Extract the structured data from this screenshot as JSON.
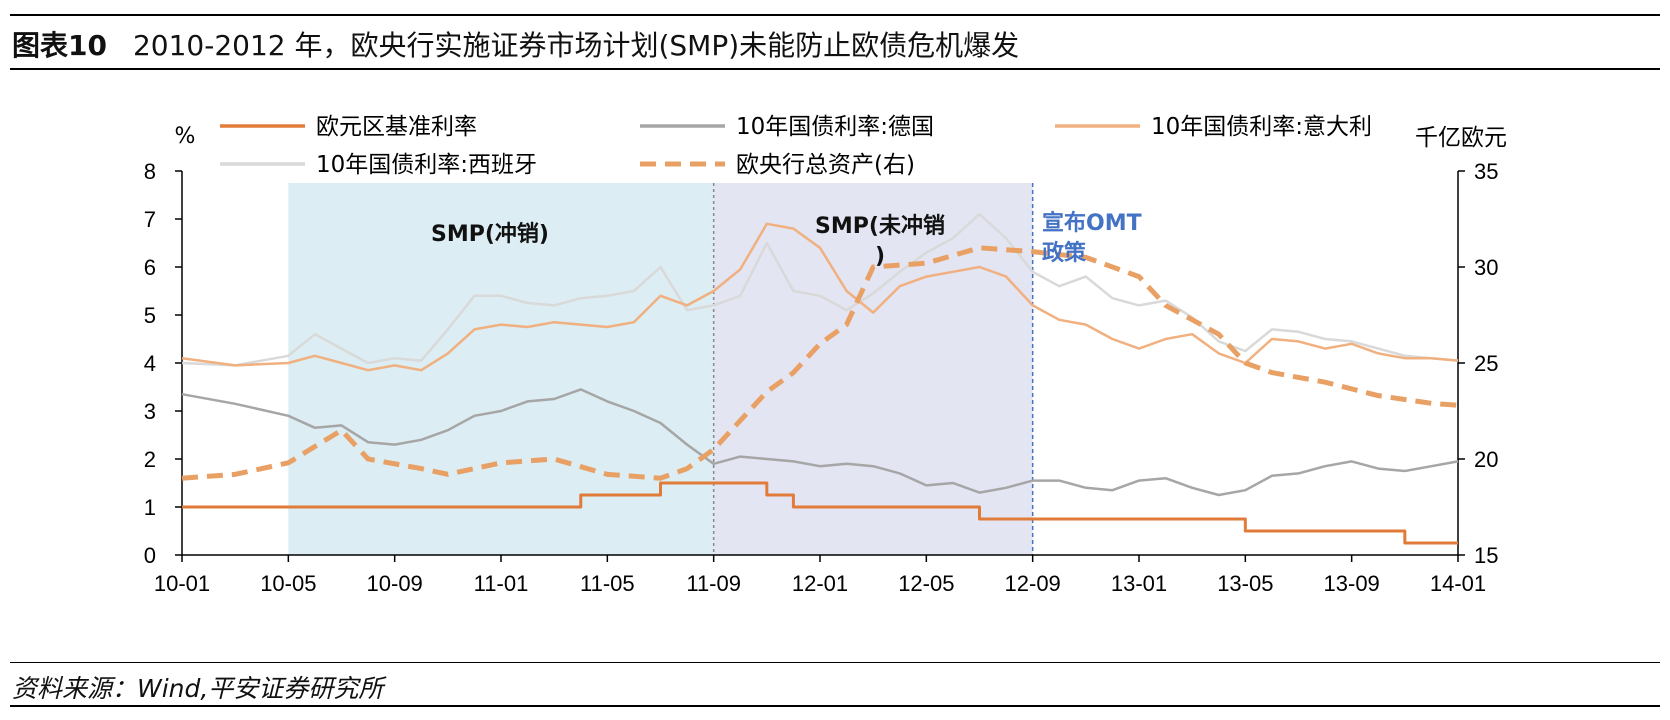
{
  "header": {
    "figure_number": "图表10",
    "title": "2010-2012 年，欧央行实施证券市场计划(SMP)未能防止欧债危机爆发"
  },
  "footer": {
    "source": "资料来源：Wind,平安证券研究所"
  },
  "chart_data": {
    "type": "line",
    "x_tick_labels": [
      "10-01",
      "10-05",
      "10-09",
      "11-01",
      "11-05",
      "11-09",
      "12-01",
      "12-05",
      "12-09",
      "13-01",
      "13-05",
      "13-09",
      "14-01"
    ],
    "y_left": {
      "unit": "%",
      "ylim": [
        0,
        8
      ],
      "ticks": [
        0,
        1,
        2,
        3,
        4,
        5,
        6,
        7,
        8
      ]
    },
    "y_right": {
      "unit": "千亿欧元",
      "ylim": [
        15,
        35
      ],
      "ticks": [
        15,
        20,
        25,
        30,
        35
      ]
    },
    "legend": [
      "欧元区基准利率",
      "10年国债利率:德国",
      "10年国债利率:意大利",
      "10年国债利率:西班牙",
      "欧央行总资产(右)"
    ],
    "colors": {
      "ecb_rate": "#e07b39",
      "germany": "#a6a6a6",
      "italy": "#f0b080",
      "spain": "#d9d9d9",
      "ecb_assets": "#e8a065",
      "smp_sterilized_region": "#dcedf3",
      "smp_unsterilized_region": "#e3e5f2",
      "omt_label": "#4472c4"
    },
    "regions": [
      {
        "label": "SMP(冲销)",
        "from": "2010-05",
        "to": "2011-09"
      },
      {
        "label": "SMP(未冲销)",
        "from": "2011-09",
        "to": "2012-09"
      }
    ],
    "annotations": [
      {
        "label": "宣布OMT政策",
        "at": "2012-09"
      }
    ],
    "series": [
      {
        "name": "欧元区基准利率",
        "axis": "left",
        "style": "step",
        "points": [
          [
            "2010-01",
            1.0
          ],
          [
            "2011-04",
            1.25
          ],
          [
            "2011-07",
            1.5
          ],
          [
            "2011-11",
            1.25
          ],
          [
            "2011-12",
            1.0
          ],
          [
            "2012-07",
            0.75
          ],
          [
            "2013-05",
            0.5
          ],
          [
            "2013-11",
            0.25
          ],
          [
            "2014-01",
            0.25
          ]
        ]
      },
      {
        "name": "10年国债利率:德国",
        "axis": "left",
        "points": [
          [
            "2010-01",
            3.35
          ],
          [
            "2010-03",
            3.15
          ],
          [
            "2010-05",
            2.9
          ],
          [
            "2010-06",
            2.65
          ],
          [
            "2010-07",
            2.7
          ],
          [
            "2010-08",
            2.35
          ],
          [
            "2010-09",
            2.3
          ],
          [
            "2010-10",
            2.4
          ],
          [
            "2010-11",
            2.6
          ],
          [
            "2010-12",
            2.9
          ],
          [
            "2011-01",
            3.0
          ],
          [
            "2011-02",
            3.2
          ],
          [
            "2011-03",
            3.25
          ],
          [
            "2011-04",
            3.45
          ],
          [
            "2011-05",
            3.2
          ],
          [
            "2011-06",
            3.0
          ],
          [
            "2011-07",
            2.75
          ],
          [
            "2011-08",
            2.3
          ],
          [
            "2011-09",
            1.9
          ],
          [
            "2011-10",
            2.05
          ],
          [
            "2011-11",
            2.0
          ],
          [
            "2011-12",
            1.95
          ],
          [
            "2012-01",
            1.85
          ],
          [
            "2012-02",
            1.9
          ],
          [
            "2012-03",
            1.85
          ],
          [
            "2012-04",
            1.7
          ],
          [
            "2012-05",
            1.45
          ],
          [
            "2012-06",
            1.5
          ],
          [
            "2012-07",
            1.3
          ],
          [
            "2012-08",
            1.4
          ],
          [
            "2012-09",
            1.55
          ],
          [
            "2012-10",
            1.55
          ],
          [
            "2012-11",
            1.4
          ],
          [
            "2012-12",
            1.35
          ],
          [
            "2013-01",
            1.55
          ],
          [
            "2013-02",
            1.6
          ],
          [
            "2013-03",
            1.4
          ],
          [
            "2013-04",
            1.25
          ],
          [
            "2013-05",
            1.35
          ],
          [
            "2013-06",
            1.65
          ],
          [
            "2013-07",
            1.7
          ],
          [
            "2013-08",
            1.85
          ],
          [
            "2013-09",
            1.95
          ],
          [
            "2013-10",
            1.8
          ],
          [
            "2013-11",
            1.75
          ],
          [
            "2013-12",
            1.85
          ],
          [
            "2014-01",
            1.95
          ]
        ]
      },
      {
        "name": "10年国债利率:意大利",
        "axis": "left",
        "points": [
          [
            "2010-01",
            4.1
          ],
          [
            "2010-03",
            3.95
          ],
          [
            "2010-05",
            4.0
          ],
          [
            "2010-06",
            4.15
          ],
          [
            "2010-07",
            4.0
          ],
          [
            "2010-08",
            3.85
          ],
          [
            "2010-09",
            3.95
          ],
          [
            "2010-10",
            3.85
          ],
          [
            "2010-11",
            4.2
          ],
          [
            "2010-12",
            4.7
          ],
          [
            "2011-01",
            4.8
          ],
          [
            "2011-02",
            4.75
          ],
          [
            "2011-03",
            4.85
          ],
          [
            "2011-04",
            4.8
          ],
          [
            "2011-05",
            4.75
          ],
          [
            "2011-06",
            4.85
          ],
          [
            "2011-07",
            5.4
          ],
          [
            "2011-08",
            5.2
          ],
          [
            "2011-09",
            5.5
          ],
          [
            "2011-10",
            5.95
          ],
          [
            "2011-11",
            6.9
          ],
          [
            "2011-12",
            6.8
          ],
          [
            "2012-01",
            6.4
          ],
          [
            "2012-02",
            5.5
          ],
          [
            "2012-03",
            5.05
          ],
          [
            "2012-04",
            5.6
          ],
          [
            "2012-05",
            5.8
          ],
          [
            "2012-06",
            5.9
          ],
          [
            "2012-07",
            6.0
          ],
          [
            "2012-08",
            5.8
          ],
          [
            "2012-09",
            5.2
          ],
          [
            "2012-10",
            4.9
          ],
          [
            "2012-11",
            4.8
          ],
          [
            "2012-12",
            4.5
          ],
          [
            "2013-01",
            4.3
          ],
          [
            "2013-02",
            4.5
          ],
          [
            "2013-03",
            4.6
          ],
          [
            "2013-04",
            4.2
          ],
          [
            "2013-05",
            4.0
          ],
          [
            "2013-06",
            4.5
          ],
          [
            "2013-07",
            4.45
          ],
          [
            "2013-08",
            4.3
          ],
          [
            "2013-09",
            4.4
          ],
          [
            "2013-10",
            4.2
          ],
          [
            "2013-11",
            4.1
          ],
          [
            "2013-12",
            4.1
          ],
          [
            "2014-01",
            4.05
          ]
        ]
      },
      {
        "name": "10年国债利率:西班牙",
        "axis": "left",
        "points": [
          [
            "2010-01",
            4.0
          ],
          [
            "2010-03",
            3.95
          ],
          [
            "2010-05",
            4.15
          ],
          [
            "2010-06",
            4.6
          ],
          [
            "2010-07",
            4.3
          ],
          [
            "2010-08",
            4.0
          ],
          [
            "2010-09",
            4.1
          ],
          [
            "2010-10",
            4.05
          ],
          [
            "2010-11",
            4.7
          ],
          [
            "2010-12",
            5.4
          ],
          [
            "2011-01",
            5.4
          ],
          [
            "2011-02",
            5.25
          ],
          [
            "2011-03",
            5.2
          ],
          [
            "2011-04",
            5.35
          ],
          [
            "2011-05",
            5.4
          ],
          [
            "2011-06",
            5.5
          ],
          [
            "2011-07",
            6.0
          ],
          [
            "2011-08",
            5.1
          ],
          [
            "2011-09",
            5.2
          ],
          [
            "2011-10",
            5.4
          ],
          [
            "2011-11",
            6.5
          ],
          [
            "2011-12",
            5.5
          ],
          [
            "2012-01",
            5.4
          ],
          [
            "2012-02",
            5.1
          ],
          [
            "2012-03",
            5.45
          ],
          [
            "2012-04",
            5.9
          ],
          [
            "2012-05",
            6.3
          ],
          [
            "2012-06",
            6.6
          ],
          [
            "2012-07",
            7.1
          ],
          [
            "2012-08",
            6.6
          ],
          [
            "2012-09",
            5.9
          ],
          [
            "2012-10",
            5.6
          ],
          [
            "2012-11",
            5.8
          ],
          [
            "2012-12",
            5.35
          ],
          [
            "2013-01",
            5.2
          ],
          [
            "2013-02",
            5.3
          ],
          [
            "2013-03",
            4.95
          ],
          [
            "2013-04",
            4.45
          ],
          [
            "2013-05",
            4.25
          ],
          [
            "2013-06",
            4.7
          ],
          [
            "2013-07",
            4.65
          ],
          [
            "2013-08",
            4.5
          ],
          [
            "2013-09",
            4.45
          ],
          [
            "2013-10",
            4.3
          ],
          [
            "2013-11",
            4.15
          ],
          [
            "2013-12",
            4.1
          ],
          [
            "2014-01",
            4.05
          ]
        ]
      },
      {
        "name": "欧央行总资产(右)",
        "axis": "right",
        "style": "dashed",
        "points": [
          [
            "2010-01",
            19.0
          ],
          [
            "2010-03",
            19.2
          ],
          [
            "2010-05",
            19.8
          ],
          [
            "2010-07",
            21.5
          ],
          [
            "2010-08",
            20.0
          ],
          [
            "2010-10",
            19.5
          ],
          [
            "2010-11",
            19.2
          ],
          [
            "2011-01",
            19.8
          ],
          [
            "2011-03",
            20.0
          ],
          [
            "2011-05",
            19.2
          ],
          [
            "2011-07",
            19.0
          ],
          [
            "2011-08",
            19.5
          ],
          [
            "2011-09",
            20.5
          ],
          [
            "2011-10",
            22.0
          ],
          [
            "2011-11",
            23.5
          ],
          [
            "2011-12",
            24.5
          ],
          [
            "2012-01",
            26.0
          ],
          [
            "2012-02",
            27.0
          ],
          [
            "2012-03",
            30.0
          ],
          [
            "2012-05",
            30.2
          ],
          [
            "2012-07",
            31.0
          ],
          [
            "2012-09",
            30.8
          ],
          [
            "2012-11",
            30.5
          ],
          [
            "2013-01",
            29.5
          ],
          [
            "2013-02",
            28.0
          ],
          [
            "2013-04",
            26.5
          ],
          [
            "2013-05",
            25.0
          ],
          [
            "2013-06",
            24.5
          ],
          [
            "2013-08",
            24.0
          ],
          [
            "2013-10",
            23.3
          ],
          [
            "2013-12",
            22.9
          ],
          [
            "2014-01",
            22.8
          ]
        ]
      }
    ]
  }
}
